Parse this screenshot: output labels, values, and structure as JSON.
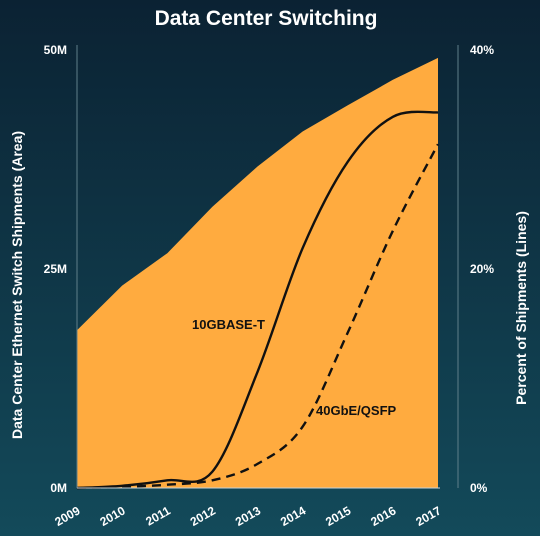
{
  "chart_data": {
    "type": "area",
    "title": "Data Center Switching",
    "x": [
      "2009",
      "2010",
      "2011",
      "2012",
      "2013",
      "2014",
      "2015",
      "2016",
      "2017"
    ],
    "y_left": {
      "label": "Data Center Ethernet Switch  Shipments (Area)",
      "ticks": [
        "0M",
        "25M",
        "50M"
      ],
      "tick_values": [
        0,
        25,
        50
      ],
      "range": [
        0,
        50
      ],
      "unit": "M"
    },
    "y_right": {
      "label": "Percent of Shipments (Lines)",
      "ticks": [
        "0%",
        "20%",
        "40%"
      ],
      "tick_values": [
        0,
        20,
        40
      ],
      "range": [
        0,
        40
      ]
    },
    "area_series": {
      "axis": "left",
      "values": [
        18,
        23.1,
        26.8,
        32.1,
        36.7,
        40.7,
        43.7,
        46.6,
        49.1
      ]
    },
    "line_series": [
      {
        "name": "10GBASE-T",
        "axis": "right",
        "style": "solid",
        "values": [
          0,
          0.2,
          0.7,
          1.5,
          10.6,
          21.9,
          29.8,
          33.9,
          34.3
        ]
      },
      {
        "name": "40GbE/QSFP",
        "axis": "right",
        "style": "dashed",
        "values": [
          0,
          0.1,
          0.3,
          0.7,
          2.2,
          5.6,
          14.2,
          23.5,
          31.4
        ]
      }
    ],
    "colors": {
      "area": "#ffab3f",
      "lines": "#111111",
      "background_top": "#0b2233",
      "background_bottom": "#134a5a",
      "text": "#ffffff"
    },
    "grid": false
  }
}
